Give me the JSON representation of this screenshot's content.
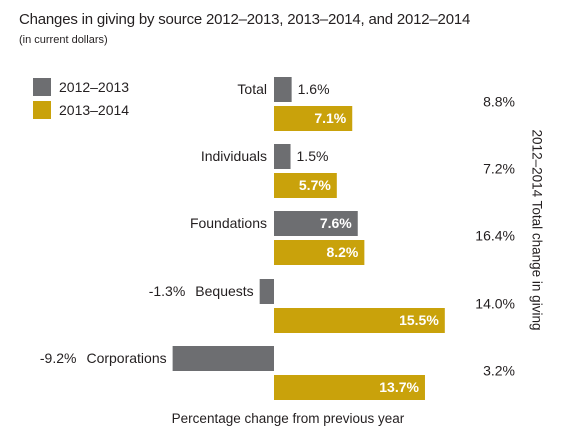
{
  "chart_data": {
    "type": "bar",
    "orientation": "horizontal",
    "title": "Changes in giving by source 2012–2013, 2013–2014, and 2012–2014",
    "subtitle": "(in current dollars)",
    "xlabel": "Percentage change from previous year",
    "right_label": "2012–2014 Total change in giving",
    "categories": [
      "Total",
      "Individuals",
      "Foundations",
      "Bequests",
      "Corporations"
    ],
    "series": [
      {
        "name": "2012–2013",
        "color": "#6d6e71",
        "values": [
          1.6,
          1.5,
          7.6,
          -1.3,
          -9.2
        ],
        "labels": [
          "1.6%",
          "1.5%",
          "7.6%",
          "-1.3%",
          "-9.2%"
        ]
      },
      {
        "name": "2013–2014",
        "color": "#c9a20b",
        "values": [
          7.1,
          5.7,
          8.2,
          15.5,
          13.7
        ],
        "labels": [
          "7.1%",
          "5.7%",
          "8.2%",
          "15.5%",
          "13.7%"
        ]
      }
    ],
    "totals": [
      8.8,
      7.2,
      16.4,
      14.0,
      3.2
    ],
    "total_labels": [
      "8.8%",
      "7.2%",
      "16.4%",
      "14.0%",
      "3.2%"
    ],
    "legend_position": "top-left",
    "grid": false
  }
}
